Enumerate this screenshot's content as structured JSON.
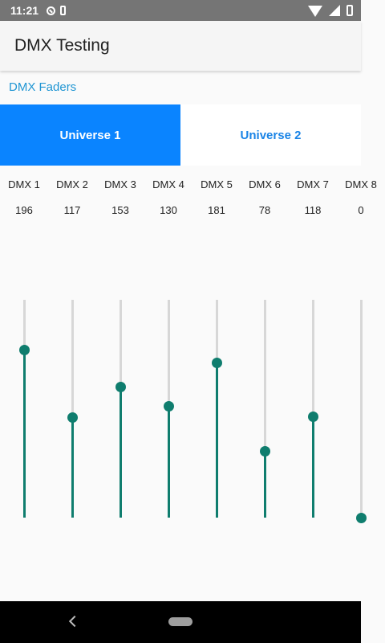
{
  "status_bar": {
    "time": "11:21"
  },
  "app_bar": {
    "title": "DMX Testing"
  },
  "section": {
    "label": "DMX Faders"
  },
  "tabs": [
    {
      "label": "Universe 1",
      "active": true
    },
    {
      "label": "Universe 2",
      "active": false
    }
  ],
  "channels": [
    {
      "label": "DMX 1",
      "value": "196"
    },
    {
      "label": "DMX 2",
      "value": "117"
    },
    {
      "label": "DMX 3",
      "value": "153"
    },
    {
      "label": "DMX 4",
      "value": "130"
    },
    {
      "label": "DMX 5",
      "value": "181"
    },
    {
      "label": "DMX 6",
      "value": "78"
    },
    {
      "label": "DMX 7",
      "value": "118"
    },
    {
      "label": "DMX 8",
      "value": "0"
    }
  ],
  "fader_max": 255,
  "colors": {
    "accent": "#0f7d6e",
    "tab_active": "#0a84ff",
    "link": "#2196d3"
  }
}
